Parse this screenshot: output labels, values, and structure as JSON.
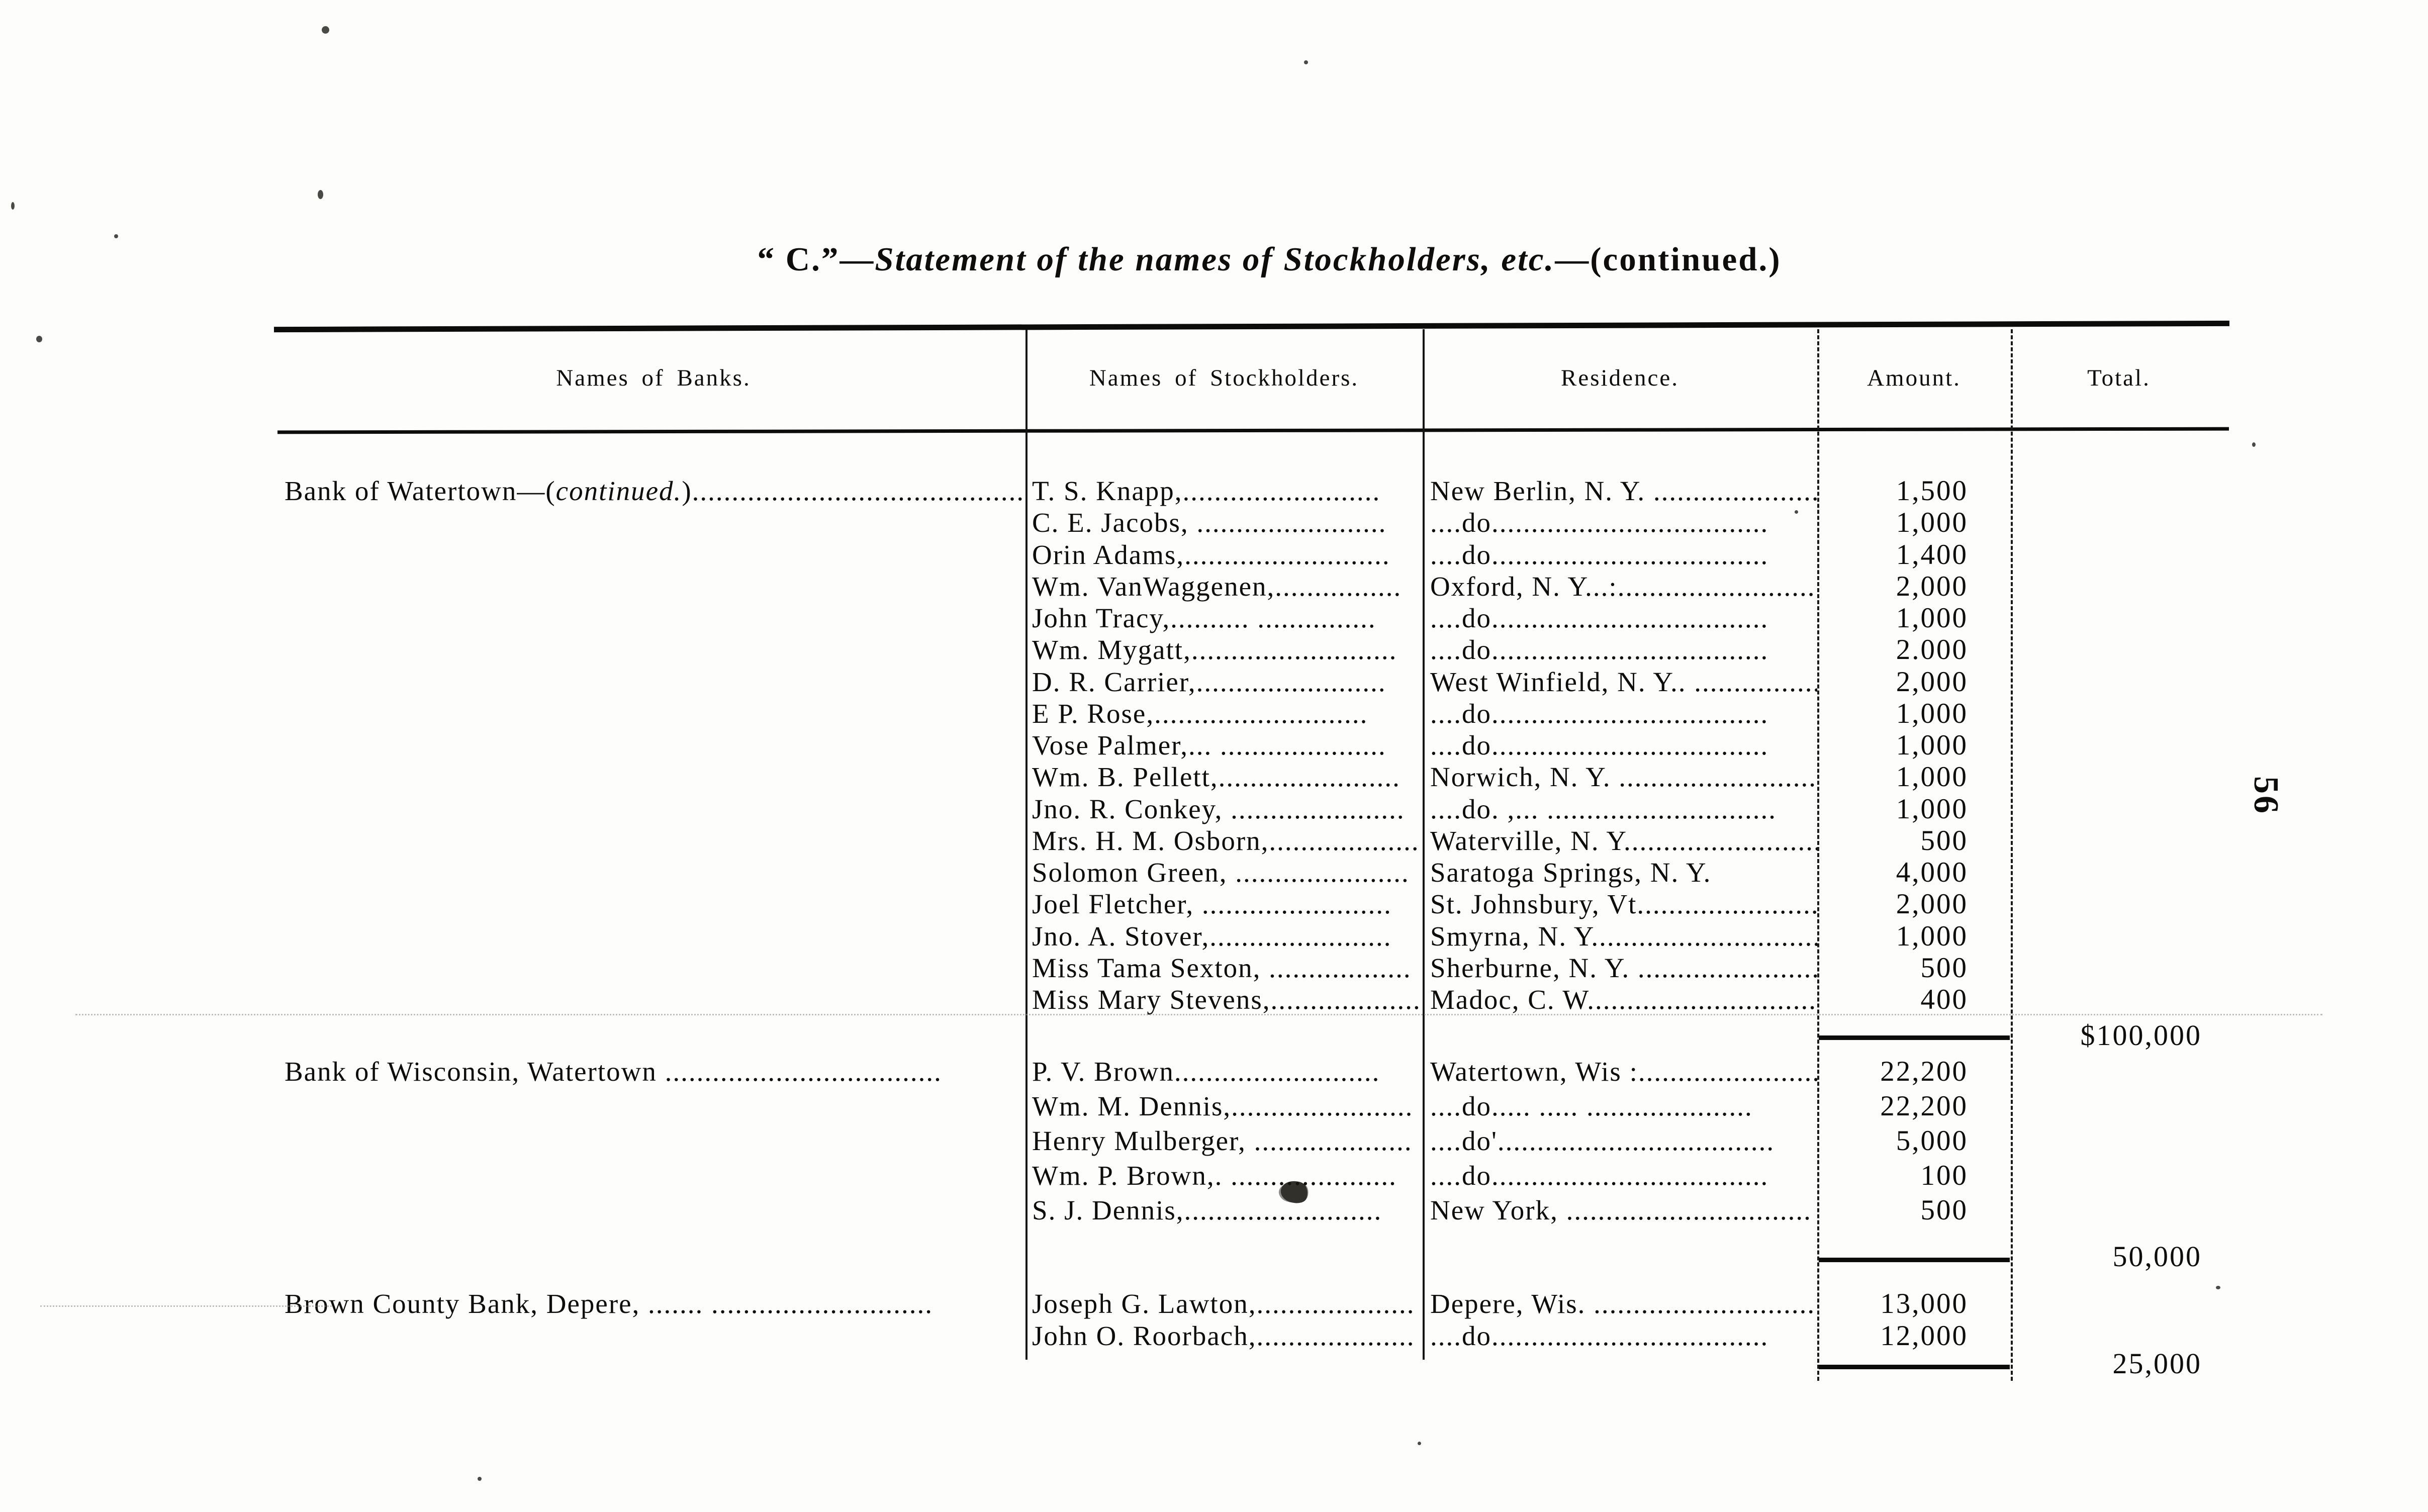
{
  "page": {
    "number": "56"
  },
  "title": {
    "prefix": "“ C.”—",
    "italic": "Statement of the names of Stockholders, etc.",
    "suffix": "—(continued.)"
  },
  "table": {
    "headers": [
      "Names of Banks.",
      "Names of  Stockholders.",
      "Residence.",
      "Amount.",
      "Total."
    ],
    "sections": [
      {
        "bank_prefix": "Bank of Watertown—(",
        "bank_italic": "continued.",
        "bank_suffix": ")..........................................",
        "rows": [
          {
            "stockholder": "T. S. Knapp,.........................",
            "residence": "New Berlin, N. Y. ........................",
            "amount": "1,500"
          },
          {
            "stockholder": "C. E. Jacobs, ........................",
            "residence": "....do...................................",
            "amount": "1,000"
          },
          {
            "stockholder": "Orin Adams,..........................",
            "residence": "....do...................................",
            "amount": "1,400"
          },
          {
            "stockholder": "Wm. VanWaggenen,................",
            "residence": "Oxford, N. Y...:..........................",
            "amount": "2,000"
          },
          {
            "stockholder": "John Tracy,..........  ...............",
            "residence": "....do...................................",
            "amount": "1,000"
          },
          {
            "stockholder": "Wm. Mygatt,..........................",
            "residence": "....do...................................",
            "amount": "2.000"
          },
          {
            "stockholder": "D. R. Carrier,........................",
            "residence": "West Winfield, N. Y.. ....................",
            "amount": "2,000"
          },
          {
            "stockholder": "E  P. Rose,...........................",
            "residence": "....do...................................",
            "amount": "1,000"
          },
          {
            "stockholder": "Vose Palmer,... .....................",
            "residence": "....do...................................",
            "amount": "1,000"
          },
          {
            "stockholder": "Wm. B. Pellett,.......................",
            "residence": "Norwich, N. Y. ...........................",
            "amount": "1,000"
          },
          {
            "stockholder": "Jno. R. Conkey, ......................",
            "residence": "....do. ,... .............................",
            "amount": "1,000"
          },
          {
            "stockholder": "Mrs. H. M. Osborn,...................",
            "residence": "Waterville, N. Y...........................",
            "amount": "500"
          },
          {
            "stockholder": "Solomon Green, ......................",
            "residence": "Saratoga Springs, N. Y.",
            "amount": "4,000"
          },
          {
            "stockholder": "Joel Fletcher, ........................",
            "residence": "St. Johnsbury, Vt.........................",
            "amount": "2,000"
          },
          {
            "stockholder": "Jno. A. Stover,.......................",
            "residence": "Smyrna, N. Y.............................",
            "amount": "1,000"
          },
          {
            "stockholder": "Miss Tama Sexton, ..................",
            "residence": "Sherburne, N. Y. .........................",
            "amount": "500"
          },
          {
            "stockholder": "Miss Mary Stevens,...................",
            "residence": "Madoc, C. W..............................",
            "amount": "400"
          }
        ],
        "total": "$100,000"
      },
      {
        "bank_prefix": "Bank of Wisconsin, Watertown ...................................",
        "bank_italic": "",
        "bank_suffix": "",
        "rows": [
          {
            "stockholder": "P. V. Brown..........................",
            "residence": "Watertown, Wis :.........................",
            "amount": "22,200"
          },
          {
            "stockholder": "Wm. M. Dennis,.......................",
            "residence": "....do.....  .....   .....................",
            "amount": "22,200"
          },
          {
            "stockholder": "Henry Mulberger, ....................",
            "residence": "....do'...................................",
            "amount": "5,000"
          },
          {
            "stockholder": "Wm. P. Brown,. .....................",
            "residence": "....do...................................",
            "amount": "100"
          },
          {
            "stockholder": "S. J. Dennis,.........................",
            "residence": "New York, ...............................",
            "amount": "500"
          }
        ],
        "total": "50,000"
      },
      {
        "bank_prefix": "Brown County Bank, Depere, .......  ............................",
        "bank_italic": "",
        "bank_suffix": "",
        "rows": [
          {
            "stockholder": "Joseph G. Lawton,....................",
            "residence": "Depere, Wis. ............................",
            "amount": "13,000"
          },
          {
            "stockholder": "John O. Roorbach,....................",
            "residence": "....do...................................",
            "amount": "12,000"
          }
        ],
        "total": "25,000"
      }
    ]
  }
}
